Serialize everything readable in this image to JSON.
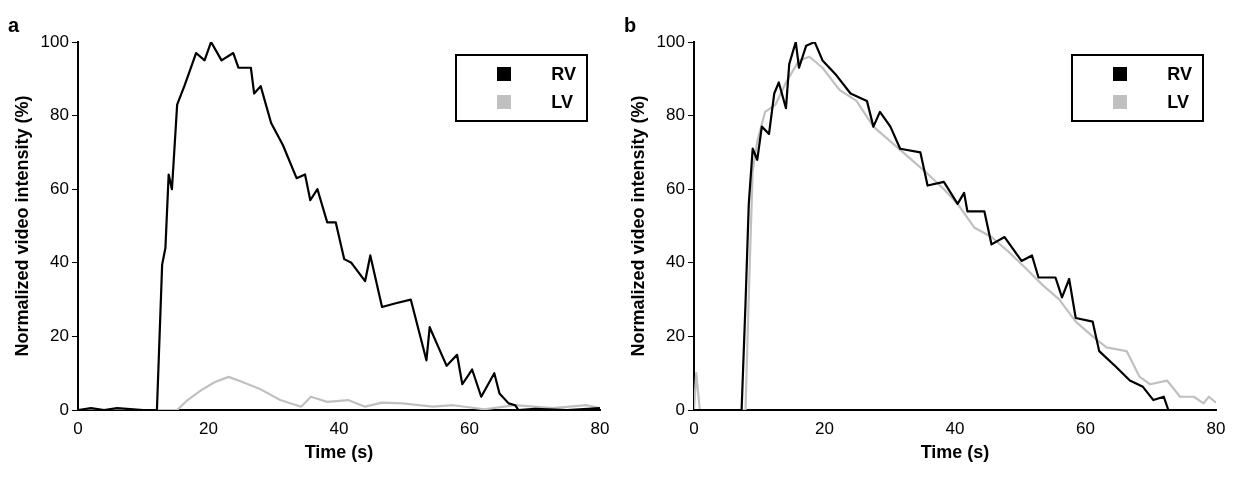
{
  "chart_data": [
    {
      "type": "line",
      "title": "a",
      "xlabel": "Time (s)",
      "ylabel": "Normalized video intensity (%)",
      "xlim": [
        0,
        80
      ],
      "xticks": [
        0,
        20,
        40,
        60,
        80
      ],
      "ylim": [
        0,
        100
      ],
      "yticks": [
        0,
        20,
        40,
        60,
        80,
        100
      ],
      "legend": "top right",
      "marker": "none",
      "line_style": "solid",
      "series": [
        {
          "name": "RV",
          "color": "#000000",
          "x": [
            0,
            2,
            4,
            6,
            10,
            12.1,
            12.9,
            13.4,
            13.9,
            14.4,
            15.2,
            16.3,
            17.3,
            18.1,
            19.4,
            20.4,
            22,
            23.8,
            24.6,
            26.5,
            27,
            28,
            29.6,
            31.4,
            33.5,
            34.8,
            35.6,
            36.7,
            38.2,
            39.5,
            40.8,
            41.9,
            44,
            44.8,
            46.6,
            48.7,
            51,
            53.4,
            53.9,
            55.5,
            56.5,
            58.1,
            58.9,
            60.4,
            61.8,
            63.8,
            64.6,
            66,
            67,
            67.5,
            70,
            75,
            80
          ],
          "values": [
            0,
            0.5,
            0,
            0.5,
            0,
            0,
            39.5,
            44,
            64,
            60,
            83,
            88,
            93,
            97,
            95,
            100,
            95,
            97,
            93,
            93,
            86,
            88,
            78,
            72,
            63,
            64,
            57,
            60,
            51,
            51,
            41,
            40,
            35,
            42,
            28,
            29,
            30,
            13.5,
            22.5,
            16,
            12,
            15,
            7,
            11,
            3.6,
            10,
            4.5,
            1.8,
            1.3,
            0,
            0.3,
            0,
            0.5
          ]
        },
        {
          "name": "LV",
          "color": "#c0c0c0",
          "x": [
            0,
            10,
            15.2,
            16.8,
            18.9,
            21,
            23.1,
            25.2,
            27.8,
            31,
            34.2,
            35.7,
            38.2,
            41.4,
            44,
            46.6,
            49.7,
            54.4,
            57.5,
            62.3,
            67,
            72.7,
            78,
            80
          ],
          "values": [
            0,
            0,
            0,
            2.7,
            5.4,
            7.6,
            9,
            7.6,
            5.8,
            2.7,
            0.9,
            3.6,
            2.2,
            2.7,
            0.9,
            2,
            1.8,
            0.9,
            1.3,
            0.2,
            1.3,
            0.5,
            1.3,
            0.5
          ]
        }
      ]
    },
    {
      "type": "line",
      "title": "b",
      "xlabel": "Time (s)",
      "ylabel": "Normalized video intensity (%)",
      "xlim": [
        0,
        80
      ],
      "xticks": [
        0,
        20,
        40,
        60,
        80
      ],
      "ylim": [
        0,
        100
      ],
      "yticks": [
        0,
        20,
        40,
        60,
        80,
        100
      ],
      "legend": "top right",
      "marker": "none",
      "line_style": "solid",
      "series": [
        {
          "name": "RV",
          "color": "#000000",
          "x": [
            0,
            3,
            7.3,
            7.9,
            8.4,
            9,
            9.7,
            10.4,
            11.5,
            12.3,
            13,
            14.1,
            14.6,
            15.6,
            16.1,
            17.2,
            18.5,
            19.7,
            21.8,
            24,
            26.5,
            27.5,
            28.5,
            30.1,
            31.6,
            34.7,
            35.8,
            38.3,
            40.4,
            41.4,
            41.9,
            44.5,
            45.6,
            47.6,
            50.2,
            51.8,
            52.8,
            55.4,
            56.4,
            57.5,
            58.5,
            61.1,
            62.1,
            64.7,
            66.8,
            68.8,
            70.4,
            72,
            72.7,
            80
          ],
          "values": [
            0,
            0,
            0,
            29,
            56,
            71,
            68,
            77,
            75,
            86,
            89,
            82,
            94,
            100,
            93,
            99,
            100,
            95,
            91,
            86,
            84,
            77,
            81,
            77,
            71,
            70,
            61,
            62,
            56,
            59,
            54,
            54,
            45,
            47,
            40.5,
            42,
            36,
            36,
            30.6,
            35.6,
            25,
            24,
            16,
            11.7,
            8,
            6.3,
            2.7,
            3.6,
            0,
            0
          ]
        },
        {
          "name": "LV",
          "color": "#c0c0c0",
          "x": [
            0,
            0.35,
            0.9,
            4,
            7.9,
            8.4,
            9,
            9.7,
            10.9,
            12.5,
            14.1,
            16.1,
            17.7,
            19.7,
            22.3,
            24.9,
            27.5,
            30.1,
            32.7,
            35.3,
            38.3,
            40.4,
            43,
            45.6,
            48.2,
            50.8,
            53.4,
            56,
            58.5,
            61.1,
            63.2,
            66.3,
            68.3,
            69.9,
            72.5,
            74.5,
            76.6,
            78.1,
            78.9,
            80
          ],
          "values": [
            0,
            10,
            0,
            0,
            0,
            31,
            65,
            73,
            81,
            83,
            89,
            95,
            96,
            93,
            87,
            84,
            77,
            73,
            69,
            65,
            60,
            56,
            49.5,
            47,
            43,
            38.6,
            34,
            30,
            24,
            20,
            17,
            16,
            9,
            7,
            8,
            3.6,
            3.6,
            1.8,
            3.6,
            2
          ]
        }
      ]
    }
  ]
}
